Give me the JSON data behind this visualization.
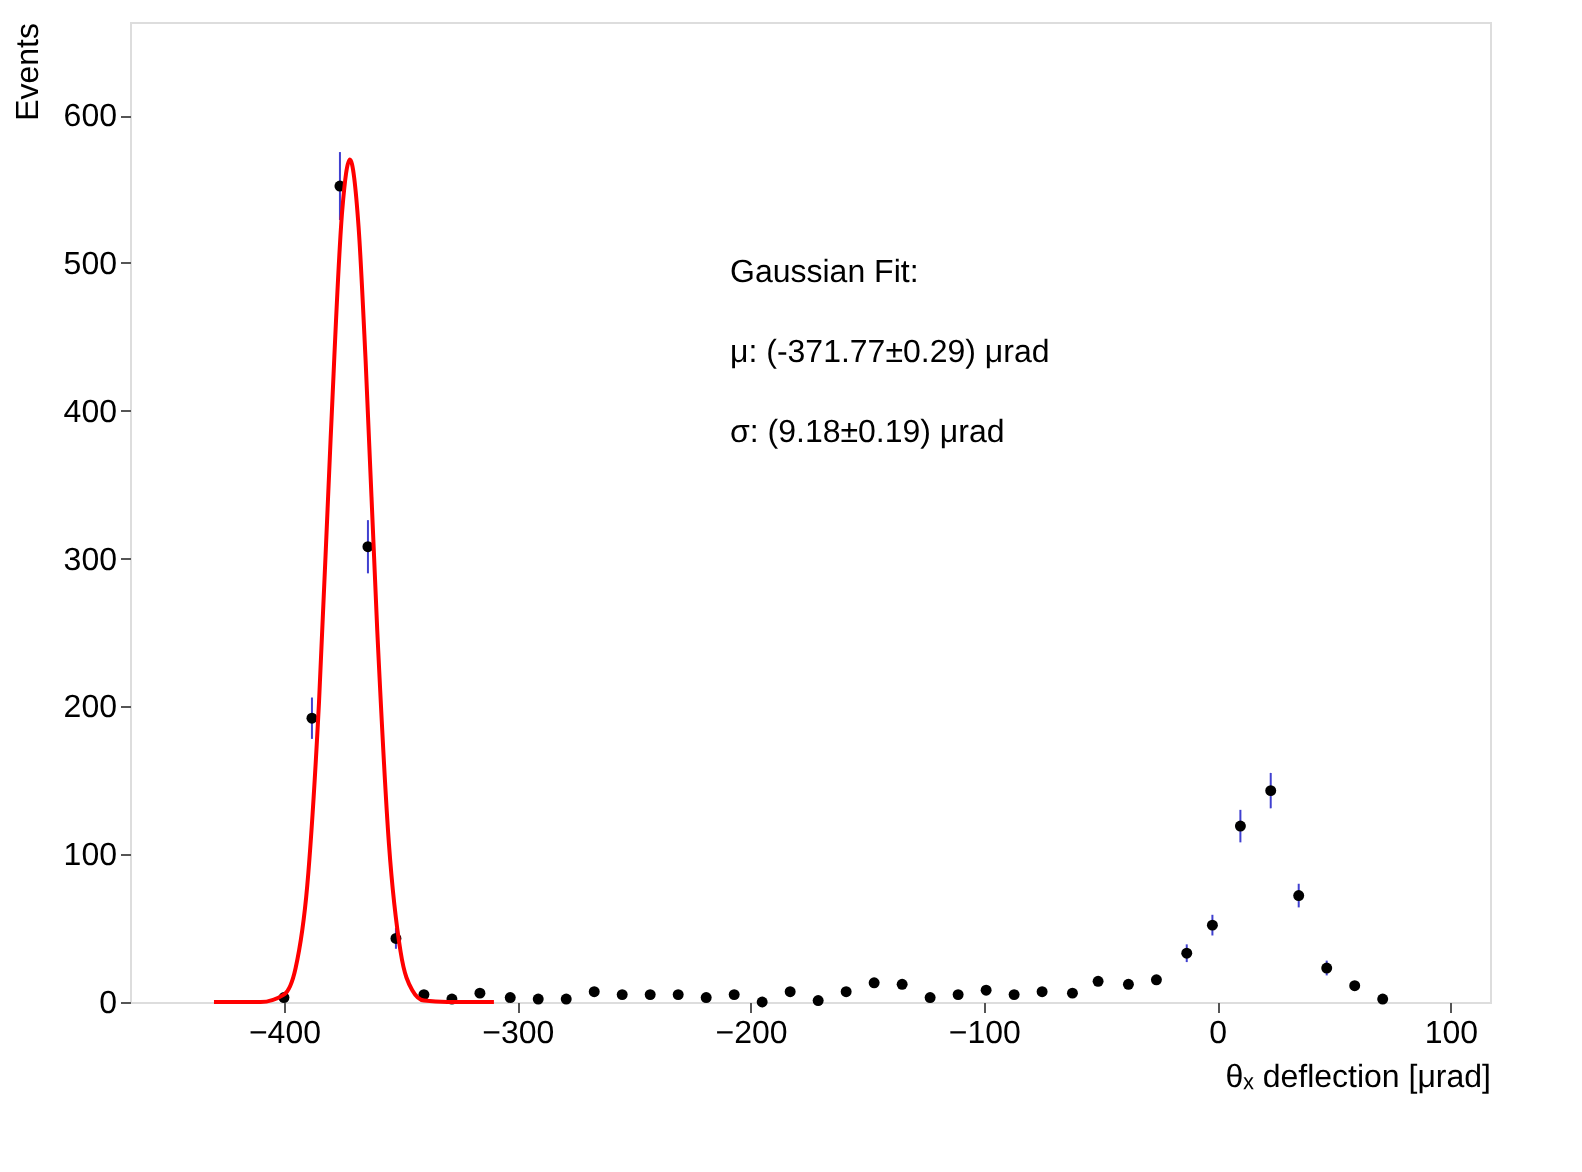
{
  "chart_data": {
    "type": "scatter",
    "xlabel": "θₓ deflection [μrad]",
    "ylabel": "Events",
    "xlim": [
      -466,
      117
    ],
    "ylim": [
      0,
      663
    ],
    "xticks": [
      -400,
      -300,
      -200,
      -100,
      0,
      100
    ],
    "yticks": [
      0,
      100,
      200,
      300,
      400,
      500,
      600
    ],
    "grid": false,
    "annotations": [
      "Gaussian Fit:",
      "μ: (-371.77±0.29) μrad",
      "σ: (9.18±0.19) μrad"
    ],
    "series": [
      {
        "color": "#000000",
        "marker": "circle",
        "x": [
          -400,
          -388,
          -376,
          -364,
          -352,
          -340,
          -328,
          -316,
          -303,
          -291,
          -279,
          -267,
          -255,
          -243,
          -231,
          -219,
          -207,
          -195,
          -183,
          -171,
          -159,
          -147,
          -135,
          -123,
          -111,
          -99,
          -87,
          -75,
          -62,
          -51,
          -38,
          -26,
          -13,
          -2,
          10,
          23,
          35,
          47,
          59,
          71
        ],
        "values": [
          3,
          192,
          552,
          308,
          43,
          5,
          2,
          6,
          3,
          2,
          2,
          7,
          5,
          5,
          5,
          3,
          5,
          0,
          7,
          1,
          7,
          13,
          12,
          3,
          5,
          8,
          5,
          7,
          6,
          14,
          12,
          15,
          33,
          52,
          119,
          143,
          72,
          23,
          11,
          2
        ],
        "errors": [
          null,
          14,
          23,
          18,
          7,
          null,
          null,
          null,
          null,
          null,
          null,
          null,
          null,
          null,
          null,
          null,
          null,
          null,
          null,
          null,
          null,
          null,
          null,
          null,
          null,
          null,
          null,
          null,
          null,
          null,
          null,
          null,
          6,
          7,
          11,
          12,
          8,
          5,
          null,
          null
        ]
      },
      {
        "type": "line",
        "color": "#ff0000",
        "line_style": "solid",
        "marker": "none",
        "x": [
          -430,
          -420,
          -410,
          -400,
          -395,
          -390,
          -385,
          -380,
          -375,
          -371.77,
          -368,
          -365,
          -360,
          -355,
          -350,
          -345,
          -340,
          -330,
          -310
        ],
        "values": [
          0,
          0,
          0,
          5,
          23,
          79,
          202,
          381,
          536,
          570,
          524,
          434,
          251,
          107,
          34,
          8,
          1,
          0,
          0
        ]
      }
    ]
  }
}
